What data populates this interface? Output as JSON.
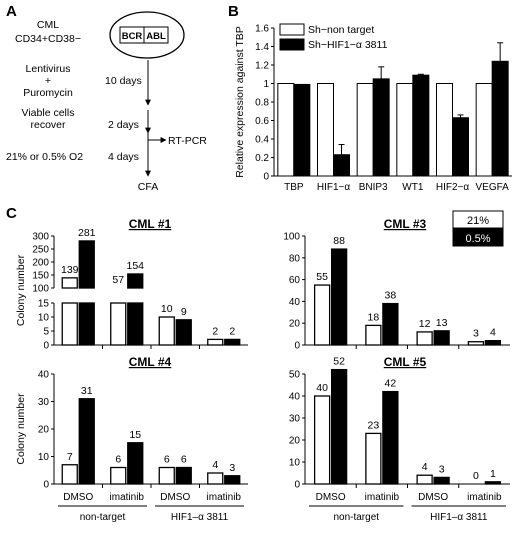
{
  "panelA": {
    "letter": "A",
    "cells_line1": "CML",
    "cells_line2": "CD34+CD38−",
    "gene1": "BCR",
    "gene2": "ABL",
    "step1_line1": "Lentivirus",
    "step1_line2": "+",
    "step1_line3": "Puromycin",
    "step1_time": "10 days",
    "step2_line1": "Viable cells",
    "step2_line2": "recover",
    "step2_time": "2 days",
    "rtpcr": "RT-PCR",
    "step3_label": "21% or 0.5% O2",
    "step3_time": "4 days",
    "cfa": "CFA"
  },
  "panelB": {
    "letter": "B",
    "colors": {
      "nontarget": "#ffffff",
      "hif": "#000000"
    }
  },
  "panelC": {
    "letter": "C",
    "legend_21": "21%",
    "legend_05": "0.5%",
    "ylabel": "Colony number",
    "group_non": "non-target",
    "group_hif": "HIF1–α 3811",
    "treat_dmso": "DMSO",
    "treat_imatinib": "imatinib"
  },
  "chart_data": [
    {
      "type": "bar",
      "title": "",
      "ylabel": "Relative expression against TBP",
      "ylim": [
        0,
        1.6
      ],
      "yticks": [
        0,
        0.2,
        0.4,
        0.6,
        0.8,
        1,
        1.2,
        1.4,
        1.6
      ],
      "categories": [
        "TBP",
        "HIF1−α",
        "BNIP3",
        "WT1",
        "HIF2−α",
        "VEGFA"
      ],
      "series": [
        {
          "name": "Sh−non target",
          "values": [
            1,
            1,
            1,
            1,
            1,
            1
          ],
          "errors": [
            0,
            0,
            0,
            0,
            0,
            0
          ]
        },
        {
          "name": "Sh−HIF1−α 3811",
          "values": [
            0.99,
            0.23,
            1.05,
            1.09,
            0.63,
            1.24
          ],
          "errors": [
            0,
            0.11,
            0.13,
            0.01,
            0.03,
            0.2
          ]
        }
      ],
      "legend": "top"
    },
    {
      "type": "bar",
      "title": "CML #1",
      "ylabel": "Colony number",
      "broken_axis": true,
      "lower_ylim": [
        0,
        15
      ],
      "upper_ylim": [
        100,
        300
      ],
      "lower_ticks": [
        0,
        5,
        10,
        15
      ],
      "upper_ticks": [
        100,
        150,
        200,
        250,
        300
      ],
      "series": [
        {
          "name": "21%",
          "values": [
            139,
            57,
            10,
            2
          ],
          "labels": [
            "139",
            "57",
            "10",
            "2"
          ]
        },
        {
          "name": "0.5%",
          "values": [
            281,
            154,
            9,
            2
          ],
          "labels": [
            "281",
            "154",
            "9",
            "2"
          ]
        }
      ]
    },
    {
      "type": "bar",
      "title": "CML #3",
      "ylim": [
        0,
        100
      ],
      "yticks": [
        0,
        20,
        40,
        60,
        80,
        100
      ],
      "series": [
        {
          "name": "21%",
          "values": [
            55,
            18,
            12,
            3
          ],
          "labels": [
            "55",
            "18",
            "12",
            "3"
          ]
        },
        {
          "name": "0.5%",
          "values": [
            88,
            38,
            13,
            4
          ],
          "labels": [
            "88",
            "38",
            "13",
            "4"
          ]
        }
      ]
    },
    {
      "type": "bar",
      "title": "CML #4",
      "ylabel": "Colony number",
      "ylim": [
        0,
        40
      ],
      "yticks": [
        0,
        10,
        20,
        30,
        40
      ],
      "series": [
        {
          "name": "21%",
          "values": [
            7,
            6,
            6,
            4
          ],
          "labels": [
            "7",
            "6",
            "6",
            "4"
          ]
        },
        {
          "name": "0.5%",
          "values": [
            31,
            15,
            6,
            3
          ],
          "labels": [
            "31",
            "15",
            "6",
            "3"
          ]
        }
      ]
    },
    {
      "type": "bar",
      "title": "CML #5",
      "ylim": [
        0,
        50
      ],
      "yticks": [
        0,
        10,
        20,
        30,
        40,
        50
      ],
      "series": [
        {
          "name": "21%",
          "values": [
            40,
            23,
            4,
            0
          ],
          "labels": [
            "40",
            "23",
            "4",
            "0"
          ]
        },
        {
          "name": "0.5%",
          "values": [
            52,
            42,
            3,
            1
          ],
          "labels": [
            "52",
            "42",
            "3",
            "1"
          ]
        }
      ]
    }
  ]
}
